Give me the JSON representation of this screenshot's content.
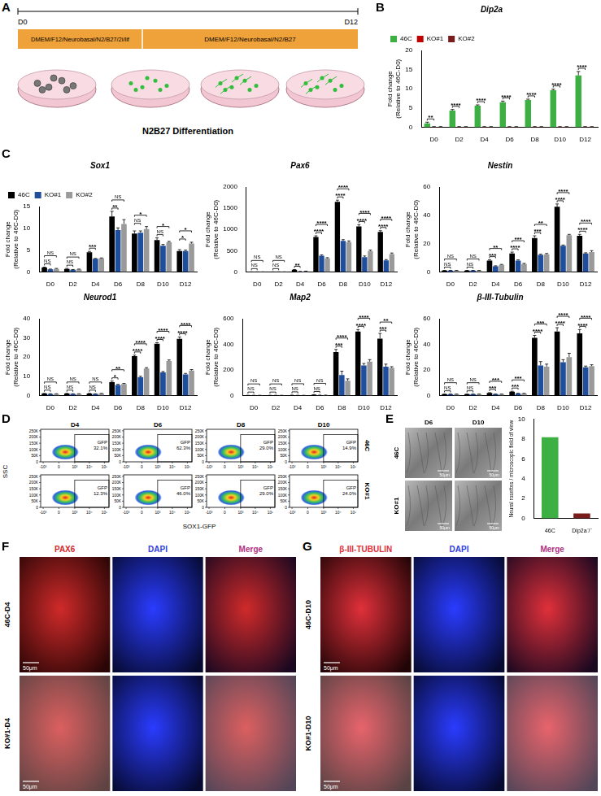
{
  "panel_A": {
    "letter": "A",
    "timeline": [
      "D0",
      "D12"
    ],
    "media": [
      "DMEM/F12/Neurobasal/N2/B27/2i/lif",
      "DMEM/F12/Neurobasal/N2/B27"
    ],
    "caption": "N2B27 Differentiation"
  },
  "chart_data": [
    {
      "type": "bar",
      "panel": "B",
      "title": "Dip2a",
      "y_label": "Fold change\n(Relative to 46C-D0)",
      "categories": [
        "D0",
        "D2",
        "D4",
        "D6",
        "D8",
        "D10",
        "D12"
      ],
      "series": [
        {
          "name": "46C",
          "color": "#3cb043",
          "values": [
            1.0,
            4.3,
            5.6,
            6.5,
            7.1,
            9.6,
            13.5
          ],
          "errors": [
            0.3,
            0.3,
            0.2,
            0.3,
            0.2,
            0.3,
            1.0
          ]
        },
        {
          "name": "KO#1",
          "color": "#c00000",
          "values": [
            0.1,
            0.1,
            0.1,
            0.1,
            0.1,
            0.1,
            0.1
          ],
          "errors": [
            0.05,
            0.05,
            0.05,
            0.05,
            0.05,
            0.05,
            0.05
          ]
        },
        {
          "name": "KO#2",
          "color": "#7b1c1c",
          "values": [
            0.1,
            0.1,
            0.1,
            0.1,
            0.1,
            0.1,
            0.1
          ],
          "errors": [
            0.05,
            0.05,
            0.05,
            0.05,
            0.05,
            0.05,
            0.05
          ]
        }
      ],
      "annotations": [
        [
          "**"
        ],
        [
          "****"
        ],
        [
          "****"
        ],
        [
          "****"
        ],
        [
          "****"
        ],
        [
          "****"
        ],
        [
          "****"
        ]
      ],
      "ylim": [
        0,
        20
      ],
      "yticks": [
        0,
        5,
        10,
        15,
        20
      ],
      "grid": false,
      "legend": "top-left"
    },
    {
      "type": "bar",
      "panel": "C",
      "title": "Sox1",
      "y_label": "Fold change\n(Relative to 46C-D0)",
      "categories": [
        "D0",
        "D2",
        "D4",
        "D6",
        "D8",
        "D10",
        "D12"
      ],
      "series": [
        {
          "name": "46C",
          "color": "#000000",
          "values": [
            1.0,
            0.7,
            4.5,
            12.7,
            8.8,
            7.3,
            4.8
          ],
          "errors": [
            0.1,
            0.1,
            0.2,
            1.2,
            0.6,
            0.5,
            0.3
          ]
        },
        {
          "name": "KO#1",
          "color": "#1f4e9c",
          "values": [
            0.6,
            0.5,
            3.0,
            9.6,
            9.0,
            6.0,
            4.8
          ],
          "errors": [
            0.05,
            0.05,
            0.1,
            0.5,
            0.4,
            0.3,
            0.2
          ]
        },
        {
          "name": "KO#2",
          "color": "#9a9a9a",
          "values": [
            0.7,
            0.6,
            3.1,
            11.0,
            9.8,
            6.8,
            6.5
          ],
          "errors": [
            0.1,
            0.05,
            0.1,
            1.0,
            0.6,
            0.2,
            0.3
          ]
        }
      ],
      "annotations": [
        [
          "NS",
          "NS"
        ],
        [
          "NS",
          "NS"
        ],
        [
          "***"
        ],
        [
          "**",
          "NS"
        ],
        [
          "NS",
          "*"
        ],
        [
          "NS",
          "*"
        ],
        [
          "*",
          "*"
        ]
      ],
      "ylim": [
        0,
        15
      ],
      "yticks": [
        0,
        5,
        10,
        15
      ],
      "grid": false,
      "legend": "top-left"
    },
    {
      "type": "bar",
      "title": "Pax6",
      "y_label": "Fold change\n(Relative to 46C-D0)",
      "categories": [
        "D0",
        "D2",
        "D4",
        "D6",
        "D8",
        "D10",
        "D12"
      ],
      "series": [
        {
          "name": "46C",
          "color": "#000000",
          "values": [
            1,
            1,
            50,
            820,
            1650,
            1070,
            940
          ],
          "errors": [
            0.2,
            0.2,
            5,
            30,
            40,
            40,
            30
          ]
        },
        {
          "name": "KO#1",
          "color": "#1f4e9c",
          "values": [
            1,
            1,
            10,
            380,
            730,
            350,
            270
          ],
          "errors": [
            0.1,
            0.1,
            2,
            20,
            30,
            25,
            20
          ]
        },
        {
          "name": "KO#2",
          "color": "#9a9a9a",
          "values": [
            1,
            1,
            15,
            320,
            700,
            490,
            420
          ],
          "errors": [
            0.1,
            0.1,
            3,
            15,
            30,
            25,
            25
          ]
        }
      ],
      "annotations": [
        [
          "NS",
          "NS"
        ],
        [
          "NS",
          "NS"
        ],
        [
          "**"
        ],
        [
          "****",
          "****"
        ],
        [
          "****",
          "****"
        ],
        [
          "****",
          "****"
        ],
        [
          "****",
          "****"
        ]
      ],
      "ylim": [
        0,
        2000
      ],
      "yticks": [
        0,
        500,
        1000,
        1500,
        2000
      ],
      "grid": false
    },
    {
      "type": "bar",
      "title": "Nestin",
      "y_label": "Fold change\n(Relative to 46C-D0)",
      "categories": [
        "D0",
        "D2",
        "D4",
        "D6",
        "D8",
        "D10",
        "D12"
      ],
      "series": [
        {
          "name": "46C",
          "color": "#000000",
          "values": [
            1,
            1,
            8,
            13,
            24,
            46,
            25.5
          ],
          "errors": [
            0.1,
            0.1,
            0.5,
            1,
            1.5,
            2,
            1
          ]
        },
        {
          "name": "KO#1",
          "color": "#1f4e9c",
          "values": [
            1,
            1,
            4,
            8,
            12,
            18.5,
            13
          ],
          "errors": [
            0.1,
            0.1,
            0.3,
            0.5,
            0.5,
            0.5,
            0.5
          ]
        },
        {
          "name": "KO#2",
          "color": "#9a9a9a",
          "values": [
            1,
            1,
            5,
            5.5,
            12.5,
            26,
            14
          ],
          "errors": [
            0.1,
            0.1,
            0.3,
            0.5,
            0.5,
            0.5,
            1
          ]
        }
      ],
      "annotations": [
        [
          "NS",
          "NS"
        ],
        [
          "NS",
          "NS"
        ],
        [
          "***",
          "**"
        ],
        [
          "****",
          "***"
        ],
        [
          "***",
          "**"
        ],
        [
          "****",
          "****"
        ],
        [
          "****",
          "****"
        ]
      ],
      "ylim": [
        0,
        60
      ],
      "yticks": [
        0,
        20,
        40,
        60
      ],
      "grid": false
    },
    {
      "type": "bar",
      "title": "Neurod1",
      "y_label": "Fold change\n(Relative to 46C-D0)",
      "categories": [
        "D0",
        "D2",
        "D4",
        "D6",
        "D8",
        "D10",
        "D12"
      ],
      "series": [
        {
          "name": "46C",
          "color": "#000000",
          "values": [
            1,
            1,
            1,
            7,
            20.5,
            27,
            29.5
          ],
          "errors": [
            0.1,
            0.1,
            0.1,
            0.5,
            0.5,
            0.5,
            1
          ]
        },
        {
          "name": "KO#1",
          "color": "#1f4e9c",
          "values": [
            0.8,
            0.8,
            0.8,
            5.5,
            9.5,
            12,
            11
          ],
          "errors": [
            0.1,
            0.1,
            0.1,
            0.3,
            0.5,
            0.5,
            0.5
          ]
        },
        {
          "name": "KO#2",
          "color": "#9a9a9a",
          "values": [
            0.8,
            0.8,
            1,
            6,
            14,
            18,
            13
          ],
          "errors": [
            0.1,
            0.1,
            0.1,
            0.3,
            0.5,
            0.5,
            0.5
          ]
        }
      ],
      "annotations": [
        [
          "NS",
          "NS"
        ],
        [
          "NS",
          "NS"
        ],
        [
          "NS",
          "NS"
        ],
        [
          "*",
          "**"
        ],
        [
          "****",
          "****"
        ],
        [
          "****",
          "****"
        ],
        [
          "****",
          "****"
        ]
      ],
      "ylim": [
        0,
        40
      ],
      "yticks": [
        0,
        10,
        20,
        30,
        40
      ],
      "grid": false
    },
    {
      "type": "bar",
      "title": "Map2",
      "y_label": "Fold change\n(Relative to 46C-D0)",
      "categories": [
        "D0",
        "D2",
        "D4",
        "D6",
        "D8",
        "D10",
        "D12"
      ],
      "series": [
        {
          "name": "46C",
          "color": "#000000",
          "values": [
            1,
            1,
            2,
            5,
            340,
            500,
            445
          ],
          "errors": [
            0.5,
            0.5,
            1,
            1,
            20,
            15,
            40
          ]
        },
        {
          "name": "KO#1",
          "color": "#1f4e9c",
          "values": [
            1,
            1,
            1,
            2,
            160,
            235,
            225
          ],
          "errors": [
            0.5,
            0.5,
            0.5,
            1,
            30,
            15,
            20
          ]
        },
        {
          "name": "KO#2",
          "color": "#9a9a9a",
          "values": [
            1,
            1,
            1,
            2,
            115,
            265,
            215
          ],
          "errors": [
            0.5,
            0.5,
            0.5,
            1,
            15,
            15,
            10
          ]
        }
      ],
      "annotations": [
        [
          "NS",
          "NS"
        ],
        [
          "NS",
          "NS"
        ],
        [
          "NS",
          "NS"
        ],
        [
          "NS",
          "NS"
        ],
        [
          "***",
          "****"
        ],
        [
          "****",
          "****"
        ],
        [
          "***",
          "**"
        ]
      ],
      "ylim": [
        0,
        600
      ],
      "yticks": [
        0,
        200,
        400,
        600
      ],
      "grid": false
    },
    {
      "type": "bar",
      "title": "β-III-Tubulin",
      "y_label": "Fold change\n(Relative to 46C-D0)",
      "categories": [
        "D0",
        "D2",
        "D4",
        "D6",
        "D8",
        "D10",
        "D12"
      ],
      "series": [
        {
          "name": "46C",
          "color": "#000000",
          "values": [
            1,
            1,
            2,
            3,
            45,
            50,
            48.5
          ],
          "errors": [
            0.1,
            0.1,
            0.2,
            0.3,
            2,
            3,
            3
          ]
        },
        {
          "name": "KO#1",
          "color": "#1f4e9c",
          "values": [
            1,
            1,
            1,
            1.5,
            23.5,
            26,
            22
          ],
          "errors": [
            0.1,
            0.1,
            0.1,
            0.2,
            3,
            2,
            1
          ]
        },
        {
          "name": "KO#2",
          "color": "#9a9a9a",
          "values": [
            1,
            1,
            1,
            1.5,
            22.5,
            30,
            23
          ],
          "errors": [
            0.1,
            0.1,
            0.1,
            0.2,
            2,
            3,
            1
          ]
        }
      ],
      "annotations": [
        [
          "NS",
          "NS"
        ],
        [
          "NS",
          "NS"
        ],
        [
          "***",
          "***"
        ],
        [
          "***",
          "***"
        ],
        [
          "****",
          "***"
        ],
        [
          "****",
          "****"
        ],
        [
          "****",
          "****"
        ]
      ],
      "ylim": [
        0,
        60
      ],
      "yticks": [
        0,
        20,
        40,
        60
      ],
      "grid": false
    },
    {
      "type": "bar",
      "y_label": "Neural rosettes / microscopic field of view",
      "categories": [
        "46C",
        "Dip2a⁻/⁻"
      ],
      "values": [
        8.2,
        0.5
      ],
      "colors": [
        "#3cb043",
        "#7b1c1c"
      ],
      "ylim": [
        0,
        10
      ],
      "yticks": [
        0,
        2,
        4,
        6,
        8,
        10
      ],
      "grid": false
    }
  ],
  "flow_cytometry": {
    "letter": "D",
    "columns": [
      "D4",
      "D6",
      "D8",
      "D10"
    ],
    "rows": [
      "46C",
      "KO#1"
    ],
    "gate_label": "GFP",
    "gate_percentages": [
      [
        "32.1%",
        "62.3%",
        "29.0%",
        "14.9%"
      ],
      [
        "12.3%",
        "46.0%",
        "29.0%",
        "24.0%"
      ]
    ],
    "gate": {
      "x": [
        1000,
        200000
      ],
      "y": [
        0,
        220000
      ]
    },
    "x_label": "SOX1-GFP",
    "y_label": "SSC",
    "xlim": [
      -1500,
      200000
    ],
    "xticks": [
      {
        "value": -1000,
        "label": "-10³"
      },
      0,
      {
        "value": 1000,
        "label": "10³"
      },
      {
        "value": 10000,
        "label": "10⁴"
      },
      {
        "value": 100000,
        "label": "10⁵"
      }
    ],
    "ylim": [
      0,
      262144
    ],
    "yticks": [
      0,
      {
        "value": 50000,
        "label": "50K"
      },
      {
        "value": 100000,
        "label": "100K"
      },
      {
        "value": 150000,
        "label": "150K"
      },
      {
        "value": 200000,
        "label": "200K"
      },
      {
        "value": 250000,
        "label": "250K"
      }
    ]
  },
  "panel_E_images": {
    "letter": "E",
    "columns": [
      "D6",
      "D10"
    ],
    "rows": [
      "46C",
      "KO#1"
    ],
    "scale_bar": "50μm"
  },
  "panel_F": {
    "letter": "F",
    "columns": [
      "PAX6",
      "DAPI",
      "Merge"
    ],
    "rows": [
      "46C-D4",
      "KO#1-D4"
    ],
    "scale_bar": "50μm"
  },
  "panel_G": {
    "letter": "G",
    "columns": [
      "β-III-TUBULIN",
      "DAPI",
      "Merge"
    ],
    "rows": [
      "46C-D10",
      "KO#1-D10"
    ],
    "scale_bar": "50μm"
  }
}
